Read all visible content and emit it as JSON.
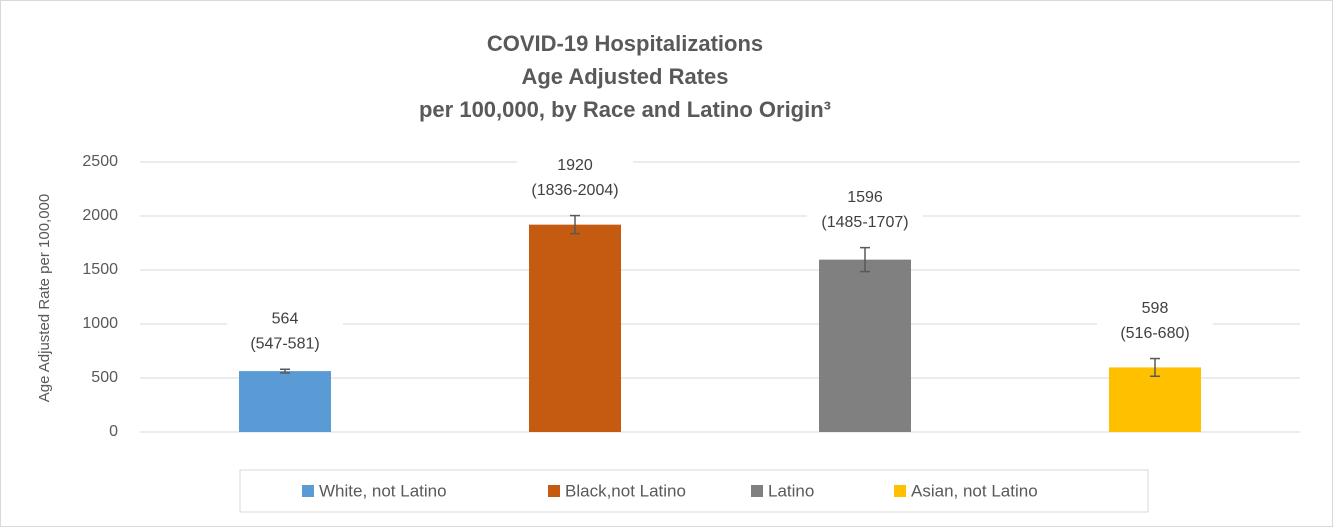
{
  "chart_data": {
    "type": "bar",
    "title": [
      "COVID-19 Hospitalizations",
      "Age Adjusted Rates",
      "per 100,000, by Race and Latino Origin³"
    ],
    "y_label": "Age Adjusted Rate per 100,000",
    "categories": [
      null,
      null,
      null,
      null
    ],
    "values": [
      564,
      1920,
      1596,
      598
    ],
    "ci": [
      [
        547,
        581
      ],
      [
        1836,
        2004
      ],
      [
        1485,
        1707
      ],
      [
        516,
        680
      ]
    ],
    "ci_labels": [
      "(547-581)",
      "(1836-2004)",
      "(1485-1707)",
      "(516-680)"
    ],
    "colors": [
      "#5b9bd5",
      "#c55a11",
      "#808080",
      "#ffc000"
    ],
    "legend": [
      "White, not Latino",
      "Black,not Latino",
      "Latino",
      "Asian, not Latino"
    ],
    "ylim": [
      0,
      2500
    ],
    "yticks": [
      0,
      500,
      1000,
      1500,
      2000,
      2500
    ],
    "grid": true
  }
}
